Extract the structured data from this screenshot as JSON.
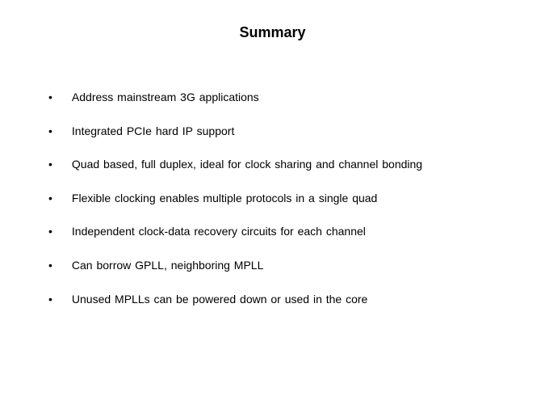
{
  "title": "Summary",
  "title_fontsize": 18,
  "title_fontweight": "bold",
  "title_color": "#000000",
  "bullet_color": "#000000",
  "text_color": "#000000",
  "text_fontsize": 14,
  "background_color": "#ffffff",
  "bullets": [
    "Address mainstream 3G applications",
    "Integrated PCIe hard IP support",
    "Quad based, full duplex, ideal for clock sharing and channel bonding",
    "Flexible clocking enables multiple protocols in a single quad",
    "Independent clock-data recovery circuits for each channel",
    "Can borrow GPLL, neighboring MPLL",
    "Unused MPLLs can be powered down or used in the core"
  ]
}
